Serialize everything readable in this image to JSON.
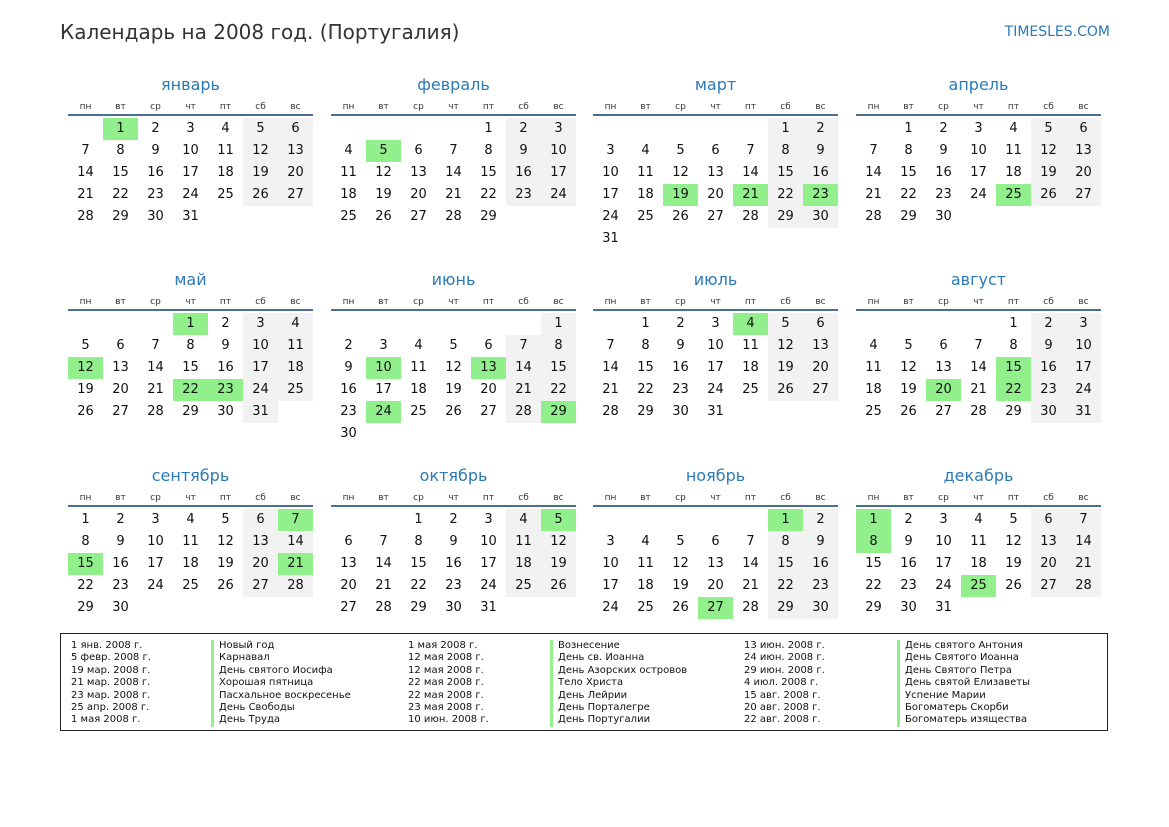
{
  "header": {
    "title": "Календарь на 2008 год. (Португалия)",
    "site": "TIMESLES.COM"
  },
  "weekdays": [
    "пн",
    "вт",
    "ср",
    "чт",
    "пт",
    "сб",
    "вс"
  ],
  "colors": {
    "accent": "#2a7ab8",
    "holiday": "#92f08c",
    "weekend": "#f2f2f2",
    "rule": "#4a6d94"
  },
  "months": [
    {
      "name": "январь",
      "start": 1,
      "days": 31,
      "holidays": [
        1
      ]
    },
    {
      "name": "февраль",
      "start": 4,
      "days": 29,
      "holidays": [
        5
      ]
    },
    {
      "name": "март",
      "start": 5,
      "days": 31,
      "holidays": [
        19,
        21,
        23
      ]
    },
    {
      "name": "апрель",
      "start": 1,
      "days": 30,
      "holidays": [
        25
      ]
    },
    {
      "name": "май",
      "start": 3,
      "days": 31,
      "holidays": [
        1,
        12,
        22,
        23
      ]
    },
    {
      "name": "июнь",
      "start": 6,
      "days": 30,
      "holidays": [
        10,
        13,
        24,
        29
      ]
    },
    {
      "name": "июль",
      "start": 1,
      "days": 31,
      "holidays": [
        4
      ]
    },
    {
      "name": "август",
      "start": 4,
      "days": 31,
      "holidays": [
        15,
        20,
        22
      ]
    },
    {
      "name": "сентябрь",
      "start": 0,
      "days": 30,
      "holidays": [
        7,
        15,
        21
      ]
    },
    {
      "name": "октябрь",
      "start": 2,
      "days": 31,
      "holidays": [
        5
      ]
    },
    {
      "name": "ноябрь",
      "start": 5,
      "days": 30,
      "holidays": [
        1,
        27
      ]
    },
    {
      "name": "декабрь",
      "start": 0,
      "days": 31,
      "holidays": [
        1,
        8,
        25
      ]
    }
  ],
  "legend": {
    "col1_dates": [
      "1 янв. 2008 г.",
      "5 февр. 2008 г.",
      "19 мар. 2008 г.",
      "21 мар. 2008 г.",
      "23 мар. 2008 г.",
      "25 апр. 2008 г.",
      "1 мая 2008 г."
    ],
    "col1_names": [
      "Новый год",
      "Карнавал",
      "День святого Иосифа",
      "Хорошая пятница",
      "Пасхальное воскресенье",
      "День Свободы",
      "День Труда"
    ],
    "col2_dates": [
      "1 мая 2008 г.",
      "12 мая 2008 г.",
      "12 мая 2008 г.",
      "22 мая 2008 г.",
      "22 мая 2008 г.",
      "23 мая 2008 г.",
      "10 июн. 2008 г."
    ],
    "col2_names": [
      "Вознесение",
      "День св. Иоанна",
      "День Азорских островов",
      "Тело Христа",
      "День Лейрии",
      "День Порталегре",
      "День Португалии"
    ],
    "col3_dates": [
      "13 июн. 2008 г.",
      "24 июн. 2008 г.",
      "29 июн. 2008 г.",
      "4 июл. 2008 г.",
      "15 авг. 2008 г.",
      "20 авг. 2008 г.",
      "22 авг. 2008 г."
    ],
    "col3_names": [
      "День святого Антония",
      "День Святого Иоанна",
      "День Святого Петра",
      "День святой Елизаветы",
      "Успение Марии",
      "Богоматерь Скорби",
      "Богоматерь изящества"
    ]
  }
}
